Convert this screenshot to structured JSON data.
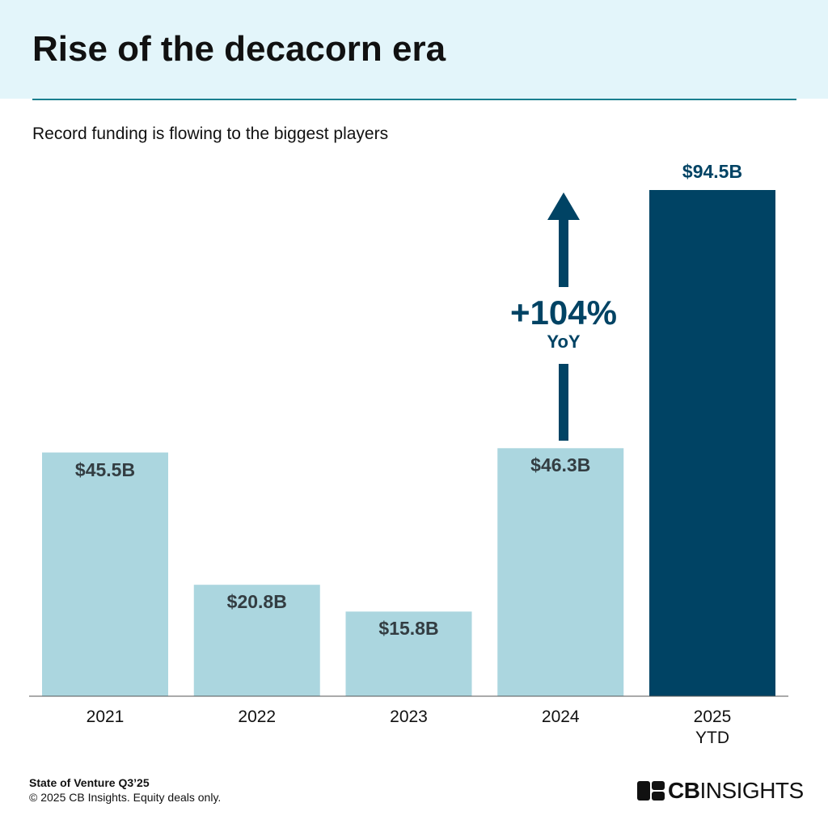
{
  "header": {
    "title": "Rise of the decacorn era",
    "subtitle": "Record funding is flowing to the biggest players"
  },
  "chart_data": {
    "type": "bar",
    "categories": [
      "2021",
      "2022",
      "2023",
      "2024",
      "2025\nYTD"
    ],
    "values": [
      45.5,
      20.8,
      15.8,
      46.3,
      94.5
    ],
    "value_labels": [
      "$45.5B",
      "$20.8B",
      "$15.8B",
      "$46.3B",
      "$94.5B"
    ],
    "colors": [
      "#abd6df",
      "#abd6df",
      "#abd6df",
      "#abd6df",
      "#004364"
    ],
    "annotation": {
      "text": "+104%",
      "subtext": "YoY"
    }
  },
  "footer": {
    "source": "State of Venture Q3’25",
    "note": "© 2025 CB Insights. Equity deals only.",
    "brand": {
      "bold": "CB",
      "regular": "INSIGHTS"
    }
  }
}
